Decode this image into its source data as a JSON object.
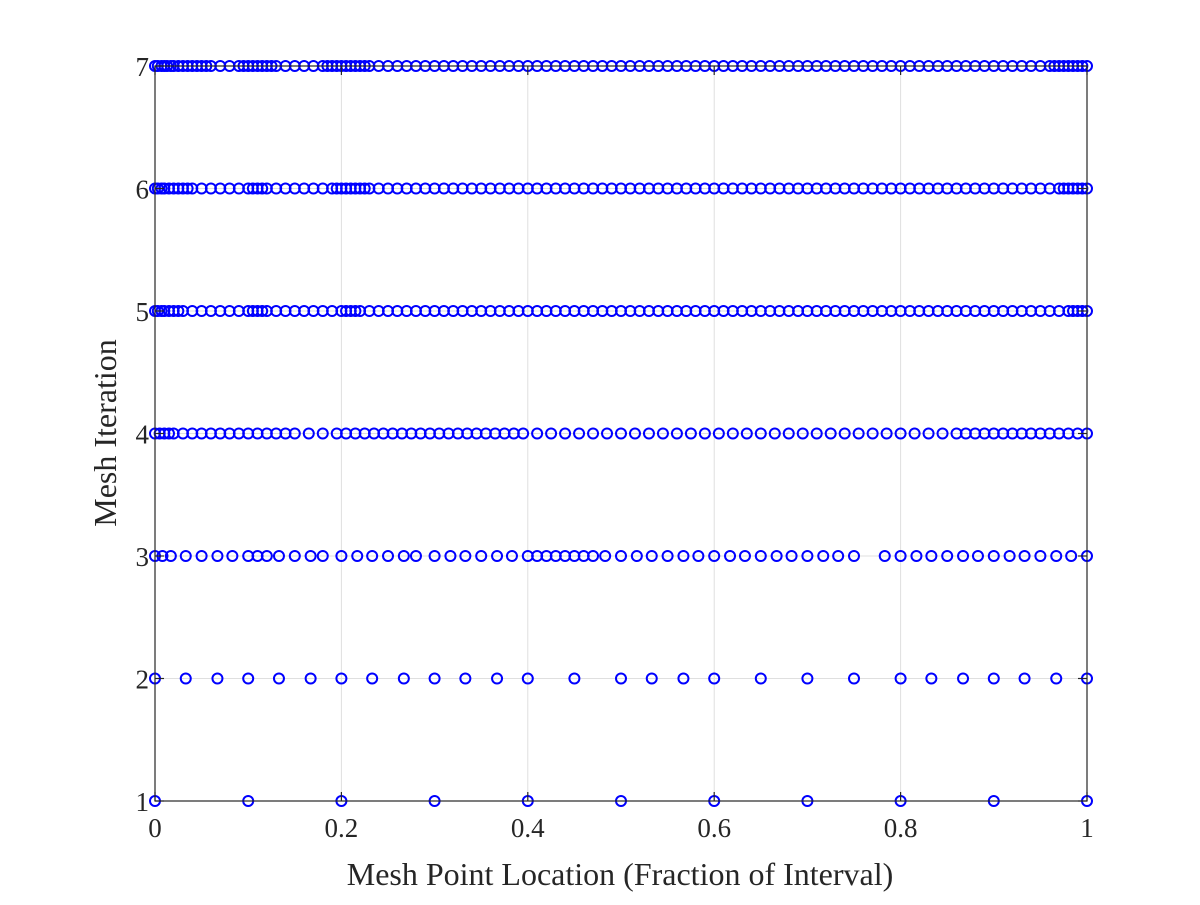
{
  "chart_data": {
    "type": "scatter",
    "title": "",
    "xlabel": "Mesh Point Location (Fraction of Interval)",
    "ylabel": "Mesh Iteration",
    "xlim": [
      0,
      1
    ],
    "ylim": [
      1,
      7
    ],
    "x_ticks": [
      0,
      0.2,
      0.4,
      0.6,
      0.8,
      1
    ],
    "x_tick_labels": [
      "0",
      "0.2",
      "0.4",
      "0.6",
      "0.8",
      "1"
    ],
    "y_ticks": [
      1,
      2,
      3,
      4,
      5,
      6,
      7
    ],
    "y_tick_labels": [
      "1",
      "2",
      "3",
      "4",
      "5",
      "6",
      "7"
    ],
    "grid": true,
    "marker": "circle-open",
    "marker_color": "#0000ff",
    "legend": "none",
    "series": [
      {
        "y": 1,
        "x": [
          0,
          0.1,
          0.2,
          0.3,
          0.4,
          0.5,
          0.6,
          0.7,
          0.8,
          0.9,
          1
        ]
      },
      {
        "y": 2,
        "x": [
          0,
          0.033,
          0.067,
          0.1,
          0.133,
          0.167,
          0.2,
          0.233,
          0.267,
          0.3,
          0.333,
          0.367,
          0.4,
          0.45,
          0.5,
          0.533,
          0.567,
          0.6,
          0.65,
          0.7,
          0.75,
          0.8,
          0.833,
          0.867,
          0.9,
          0.933,
          0.967,
          1
        ]
      },
      {
        "y": 3,
        "x": [
          0,
          0.008,
          0.017,
          0.033,
          0.05,
          0.067,
          0.083,
          0.1,
          0.11,
          0.12,
          0.133,
          0.15,
          0.167,
          0.18,
          0.2,
          0.217,
          0.233,
          0.25,
          0.267,
          0.28,
          0.3,
          0.317,
          0.333,
          0.35,
          0.367,
          0.383,
          0.4,
          0.41,
          0.42,
          0.43,
          0.44,
          0.45,
          0.46,
          0.47,
          0.483,
          0.5,
          0.517,
          0.533,
          0.55,
          0.567,
          0.583,
          0.6,
          0.617,
          0.633,
          0.65,
          0.667,
          0.683,
          0.7,
          0.717,
          0.733,
          0.75,
          0.783,
          0.8,
          0.817,
          0.833,
          0.85,
          0.867,
          0.883,
          0.9,
          0.917,
          0.933,
          0.95,
          0.967,
          0.983,
          1
        ]
      },
      {
        "y": 4,
        "x": [
          0,
          0.005,
          0.01,
          0.015,
          0.02,
          0.03,
          0.04,
          0.05,
          0.06,
          0.07,
          0.08,
          0.09,
          0.1,
          0.11,
          0.12,
          0.13,
          0.14,
          0.15,
          0.165,
          0.18,
          0.195,
          0.205,
          0.215,
          0.225,
          0.235,
          0.245,
          0.255,
          0.265,
          0.275,
          0.285,
          0.295,
          0.305,
          0.315,
          0.325,
          0.335,
          0.345,
          0.355,
          0.365,
          0.375,
          0.385,
          0.395,
          0.41,
          0.425,
          0.44,
          0.455,
          0.47,
          0.485,
          0.5,
          0.515,
          0.53,
          0.545,
          0.56,
          0.575,
          0.59,
          0.605,
          0.62,
          0.635,
          0.65,
          0.665,
          0.68,
          0.695,
          0.71,
          0.725,
          0.74,
          0.755,
          0.77,
          0.785,
          0.8,
          0.815,
          0.83,
          0.845,
          0.86,
          0.87,
          0.88,
          0.89,
          0.9,
          0.91,
          0.92,
          0.93,
          0.94,
          0.95,
          0.96,
          0.97,
          0.98,
          0.99,
          1
        ]
      },
      {
        "y": 5,
        "x": [
          0,
          0.003,
          0.007,
          0.01,
          0.015,
          0.02,
          0.025,
          0.03,
          0.04,
          0.05,
          0.06,
          0.07,
          0.08,
          0.09,
          0.1,
          0.105,
          0.11,
          0.115,
          0.12,
          0.13,
          0.14,
          0.15,
          0.16,
          0.17,
          0.18,
          0.19,
          0.2,
          0.205,
          0.21,
          0.215,
          0.22,
          0.23,
          0.24,
          0.25,
          0.26,
          0.27,
          0.28,
          0.29,
          0.3,
          0.31,
          0.32,
          0.33,
          0.34,
          0.35,
          0.36,
          0.37,
          0.38,
          0.39,
          0.4,
          0.41,
          0.42,
          0.43,
          0.44,
          0.45,
          0.46,
          0.47,
          0.48,
          0.49,
          0.5,
          0.51,
          0.52,
          0.53,
          0.54,
          0.55,
          0.56,
          0.57,
          0.58,
          0.59,
          0.6,
          0.61,
          0.62,
          0.63,
          0.64,
          0.65,
          0.66,
          0.67,
          0.68,
          0.69,
          0.7,
          0.71,
          0.72,
          0.73,
          0.74,
          0.75,
          0.76,
          0.77,
          0.78,
          0.79,
          0.8,
          0.81,
          0.82,
          0.83,
          0.84,
          0.85,
          0.86,
          0.87,
          0.88,
          0.89,
          0.9,
          0.91,
          0.92,
          0.93,
          0.94,
          0.95,
          0.96,
          0.97,
          0.98,
          0.985,
          0.99,
          0.995,
          1
        ]
      },
      {
        "y": 6,
        "x": [
          0,
          0.003,
          0.007,
          0.01,
          0.015,
          0.02,
          0.025,
          0.03,
          0.035,
          0.04,
          0.05,
          0.06,
          0.07,
          0.08,
          0.09,
          0.1,
          0.105,
          0.11,
          0.115,
          0.12,
          0.13,
          0.14,
          0.15,
          0.16,
          0.17,
          0.18,
          0.19,
          0.195,
          0.2,
          0.205,
          0.21,
          0.215,
          0.22,
          0.225,
          0.23,
          0.24,
          0.25,
          0.26,
          0.27,
          0.28,
          0.29,
          0.3,
          0.31,
          0.32,
          0.33,
          0.34,
          0.35,
          0.36,
          0.37,
          0.38,
          0.39,
          0.4,
          0.41,
          0.42,
          0.43,
          0.44,
          0.45,
          0.46,
          0.47,
          0.48,
          0.49,
          0.5,
          0.51,
          0.52,
          0.53,
          0.54,
          0.55,
          0.56,
          0.57,
          0.58,
          0.59,
          0.6,
          0.61,
          0.62,
          0.63,
          0.64,
          0.65,
          0.66,
          0.67,
          0.68,
          0.69,
          0.7,
          0.71,
          0.72,
          0.73,
          0.74,
          0.75,
          0.76,
          0.77,
          0.78,
          0.79,
          0.8,
          0.81,
          0.82,
          0.83,
          0.84,
          0.85,
          0.86,
          0.87,
          0.88,
          0.89,
          0.9,
          0.91,
          0.92,
          0.93,
          0.94,
          0.95,
          0.96,
          0.97,
          0.975,
          0.98,
          0.985,
          0.99,
          0.995,
          1
        ]
      },
      {
        "y": 7,
        "x": [
          0,
          0.003,
          0.007,
          0.01,
          0.013,
          0.017,
          0.02,
          0.025,
          0.03,
          0.035,
          0.04,
          0.045,
          0.05,
          0.055,
          0.06,
          0.07,
          0.08,
          0.09,
          0.095,
          0.1,
          0.105,
          0.11,
          0.115,
          0.12,
          0.125,
          0.13,
          0.14,
          0.15,
          0.16,
          0.17,
          0.18,
          0.185,
          0.19,
          0.195,
          0.2,
          0.205,
          0.21,
          0.215,
          0.22,
          0.225,
          0.23,
          0.24,
          0.25,
          0.26,
          0.27,
          0.28,
          0.29,
          0.3,
          0.31,
          0.32,
          0.33,
          0.34,
          0.35,
          0.36,
          0.37,
          0.38,
          0.39,
          0.4,
          0.41,
          0.42,
          0.43,
          0.44,
          0.45,
          0.46,
          0.47,
          0.48,
          0.49,
          0.5,
          0.51,
          0.52,
          0.53,
          0.54,
          0.55,
          0.56,
          0.57,
          0.58,
          0.59,
          0.6,
          0.61,
          0.62,
          0.63,
          0.64,
          0.65,
          0.66,
          0.67,
          0.68,
          0.69,
          0.7,
          0.71,
          0.72,
          0.73,
          0.74,
          0.75,
          0.76,
          0.77,
          0.78,
          0.79,
          0.8,
          0.81,
          0.82,
          0.83,
          0.84,
          0.85,
          0.86,
          0.87,
          0.88,
          0.89,
          0.9,
          0.91,
          0.92,
          0.93,
          0.94,
          0.95,
          0.96,
          0.965,
          0.97,
          0.975,
          0.98,
          0.985,
          0.99,
          0.995,
          1
        ]
      }
    ]
  }
}
